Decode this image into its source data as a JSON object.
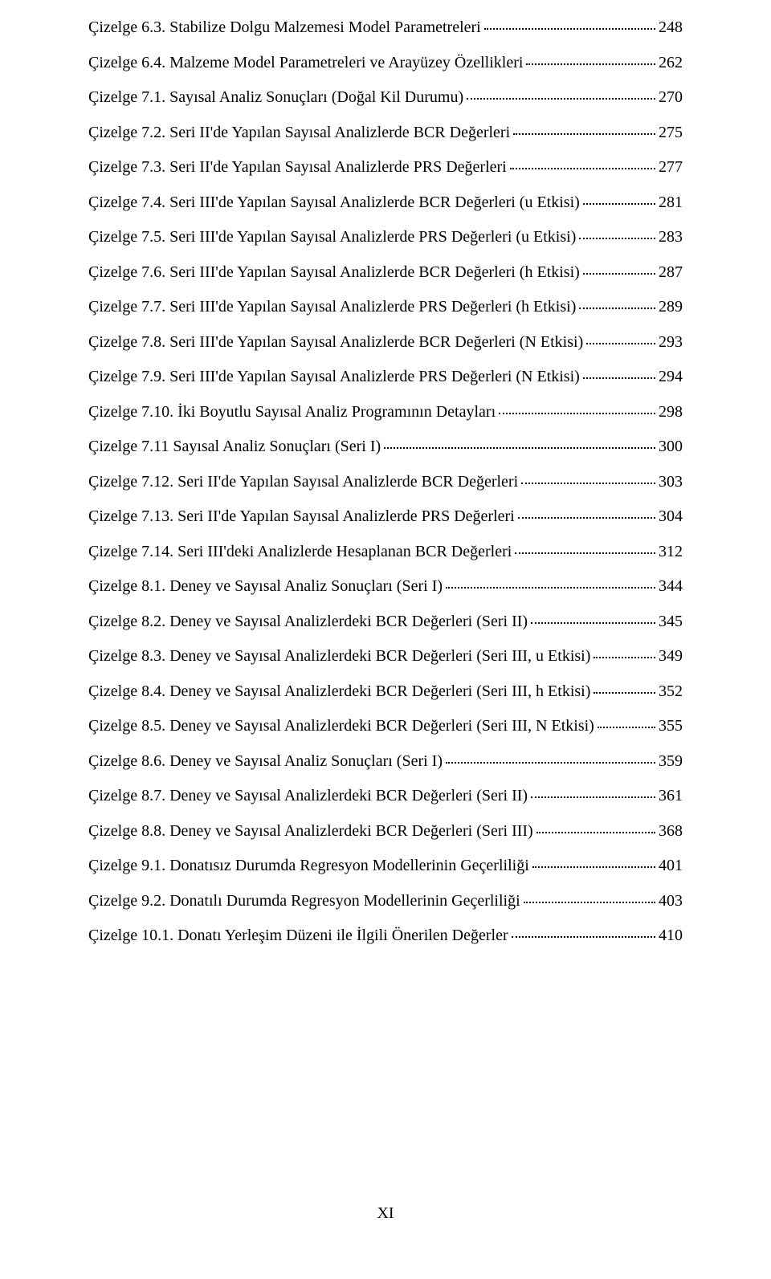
{
  "pageNumber": "XI",
  "entries": [
    {
      "label": "Çizelge 6.3. Stabilize Dolgu Malzemesi Model Parametreleri",
      "page": "248"
    },
    {
      "label": "Çizelge 6.4. Malzeme Model Parametreleri ve Arayüzey Özellikleri",
      "page": "262"
    },
    {
      "label": "Çizelge 7.1. Sayısal Analiz Sonuçları (Doğal Kil Durumu)",
      "page": "270"
    },
    {
      "label": "Çizelge 7.2. Seri II'de Yapılan Sayısal Analizlerde BCR Değerleri",
      "page": "275"
    },
    {
      "label": "Çizelge 7.3. Seri II'de Yapılan Sayısal Analizlerde PRS Değerleri",
      "page": "277"
    },
    {
      "label": "Çizelge 7.4. Seri III'de Yapılan Sayısal Analizlerde BCR Değerleri (u Etkisi)",
      "page": "281"
    },
    {
      "label": "Çizelge 7.5. Seri III'de Yapılan Sayısal Analizlerde PRS Değerleri (u Etkisi)",
      "page": "283"
    },
    {
      "label": "Çizelge 7.6. Seri III'de Yapılan Sayısal Analizlerde BCR Değerleri (h Etkisi)",
      "page": "287"
    },
    {
      "label": "Çizelge 7.7. Seri III'de Yapılan Sayısal Analizlerde PRS Değerleri (h Etkisi)",
      "page": "289"
    },
    {
      "label": "Çizelge 7.8. Seri III'de Yapılan Sayısal Analizlerde BCR Değerleri (N Etkisi)",
      "page": "293"
    },
    {
      "label": "Çizelge 7.9. Seri III'de Yapılan Sayısal Analizlerde PRS Değerleri (N Etkisi)",
      "page": "294"
    },
    {
      "label": "Çizelge 7.10. İki Boyutlu Sayısal Analiz Programının Detayları",
      "page": "298"
    },
    {
      "label": "Çizelge 7.11 Sayısal Analiz Sonuçları (Seri I)",
      "page": "300"
    },
    {
      "label": "Çizelge 7.12. Seri II'de Yapılan Sayısal Analizlerde BCR Değerleri",
      "page": "303"
    },
    {
      "label": "Çizelge 7.13. Seri II'de Yapılan Sayısal Analizlerde PRS Değerleri",
      "page": "304"
    },
    {
      "label": "Çizelge 7.14. Seri III'deki Analizlerde Hesaplanan BCR Değerleri",
      "page": "312"
    },
    {
      "label": "Çizelge 8.1. Deney ve Sayısal Analiz Sonuçları (Seri I)",
      "page": "344"
    },
    {
      "label": "Çizelge 8.2. Deney ve Sayısal Analizlerdeki BCR Değerleri (Seri II)",
      "page": "345"
    },
    {
      "label": "Çizelge 8.3. Deney ve Sayısal Analizlerdeki BCR Değerleri (Seri III, u Etkisi)",
      "page": "349"
    },
    {
      "label": "Çizelge 8.4. Deney ve Sayısal Analizlerdeki BCR Değerleri (Seri III, h Etkisi)",
      "page": "352"
    },
    {
      "label": "Çizelge 8.5. Deney ve Sayısal Analizlerdeki BCR Değerleri (Seri III, N Etkisi)",
      "page": "355"
    },
    {
      "label": "Çizelge 8.6. Deney ve Sayısal Analiz Sonuçları (Seri I)",
      "page": "359"
    },
    {
      "label": "Çizelge 8.7. Deney ve Sayısal Analizlerdeki BCR Değerleri (Seri II)",
      "page": "361"
    },
    {
      "label": "Çizelge 8.8. Deney ve Sayısal Analizlerdeki BCR Değerleri (Seri III)",
      "page": "368"
    },
    {
      "label": "Çizelge 9.1. Donatısız Durumda Regresyon Modellerinin Geçerliliği",
      "page": "401"
    },
    {
      "label": "Çizelge 9.2. Donatılı Durumda Regresyon Modellerinin Geçerliliği",
      "page": "403"
    },
    {
      "label": "Çizelge 10.1. Donatı Yerleşim Düzeni ile İlgili Önerilen Değerler",
      "page": "410"
    }
  ]
}
